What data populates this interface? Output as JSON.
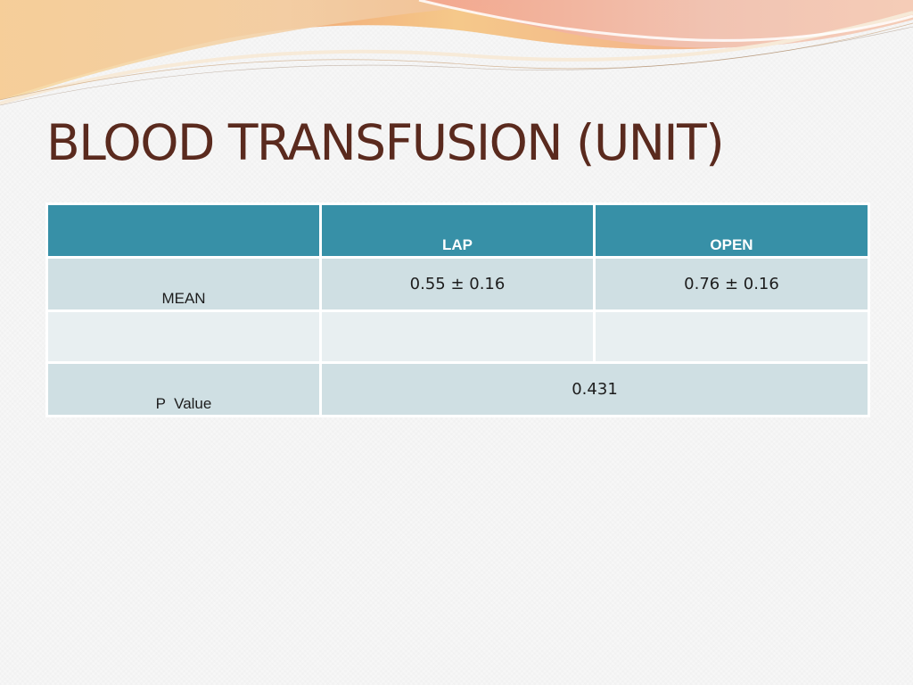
{
  "slide": {
    "title": "BLOOD TRANSFUSION (UNIT)"
  },
  "table": {
    "headers": [
      "",
      "LAP",
      "OPEN"
    ],
    "mean_row": {
      "label": "MEAN",
      "lap": "0.55 ± 0.16",
      "open": "0.76 ± 0.16"
    },
    "p_row": {
      "label": "P  Value",
      "value": "0.431"
    }
  },
  "colors": {
    "title": "#5a2a1e",
    "header_bg": "#3790a7",
    "row_a_bg": "#cfdfe3",
    "row_b_bg": "#e8eff1",
    "wave_accent": "#e8735a"
  }
}
